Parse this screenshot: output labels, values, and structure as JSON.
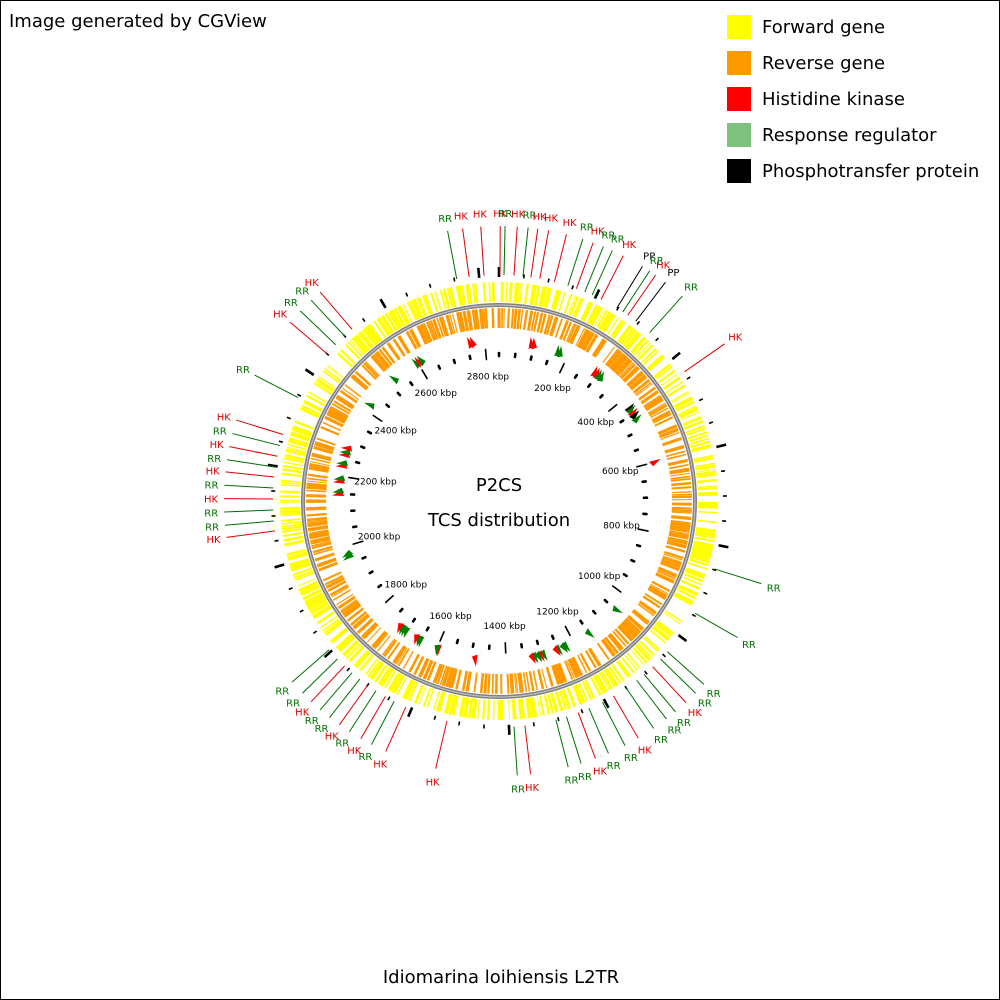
{
  "credit": "Image generated by CGView",
  "legend": [
    {
      "label": "Forward gene",
      "color": "#ffff00"
    },
    {
      "label": "Reverse gene",
      "color": "#ff9900"
    },
    {
      "label": "Histidine kinase",
      "color": "#ff0000"
    },
    {
      "label": "Response regulator",
      "color": "#7fc07f"
    },
    {
      "label": "Phosphotransfer protein",
      "color": "#000000"
    }
  ],
  "center_title": "P2CS",
  "center_subtitle": "TCS distribution",
  "bottom_title": "Idiomarina loihiensis L2TR",
  "map": {
    "genome_length_kbp": 2840,
    "backbone_color": "#808080",
    "feature_colors": {
      "HK": "#ff0000",
      "RR": "#008000",
      "PP": "#000000"
    },
    "ruler_labels": [
      {
        "kbp": 200,
        "text": "200 kbp"
      },
      {
        "kbp": 400,
        "text": "400 kbp"
      },
      {
        "kbp": 600,
        "text": "600 kbp"
      },
      {
        "kbp": 800,
        "text": "800 kbp"
      },
      {
        "kbp": 1000,
        "text": "1000 kbp"
      },
      {
        "kbp": 1200,
        "text": "1200 kbp"
      },
      {
        "kbp": 1400,
        "text": "1400 kbp"
      },
      {
        "kbp": 1600,
        "text": "1600 kbp"
      },
      {
        "kbp": 1800,
        "text": "1800 kbp"
      },
      {
        "kbp": 2000,
        "text": "2000 kbp"
      },
      {
        "kbp": 2200,
        "text": "2200 kbp"
      },
      {
        "kbp": 2400,
        "text": "2400 kbp"
      },
      {
        "kbp": 2600,
        "text": "2600 kbp"
      },
      {
        "kbp": 2800,
        "text": "2800 kbp"
      }
    ],
    "tcs_features": [
      {
        "type": "HK",
        "kbp": 92
      },
      {
        "type": "HK",
        "kbp": 100
      },
      {
        "type": "RR",
        "kbp": 170
      },
      {
        "type": "RR",
        "kbp": 178
      },
      {
        "type": "HK",
        "kbp": 290
      },
      {
        "type": "HK",
        "kbp": 298
      },
      {
        "type": "RR",
        "kbp": 305
      },
      {
        "type": "RR",
        "kbp": 313
      },
      {
        "type": "PP",
        "kbp": 432
      },
      {
        "type": "RR",
        "kbp": 438
      },
      {
        "type": "HK",
        "kbp": 448
      },
      {
        "type": "PP",
        "kbp": 456
      },
      {
        "type": "RR",
        "kbp": 468
      },
      {
        "type": "HK",
        "kbp": 600
      },
      {
        "type": "RR",
        "kbp": 1048
      },
      {
        "type": "RR",
        "kbp": 1150
      },
      {
        "type": "RR",
        "kbp": 1225
      },
      {
        "type": "RR",
        "kbp": 1232
      },
      {
        "type": "RR",
        "kbp": 1248
      },
      {
        "type": "HK",
        "kbp": 1254
      },
      {
        "type": "RR",
        "kbp": 1292
      },
      {
        "type": "HK",
        "kbp": 1300
      },
      {
        "type": "RR",
        "kbp": 1307
      },
      {
        "type": "RR",
        "kbp": 1318
      },
      {
        "type": "HK",
        "kbp": 1325
      },
      {
        "type": "HK",
        "kbp": 1488
      },
      {
        "type": "HK",
        "kbp": 1596
      },
      {
        "type": "RR",
        "kbp": 1600
      },
      {
        "type": "RR",
        "kbp": 1652
      },
      {
        "type": "RR",
        "kbp": 1658
      },
      {
        "type": "HK",
        "kbp": 1666
      },
      {
        "type": "RR",
        "kbp": 1700
      },
      {
        "type": "RR",
        "kbp": 1708
      },
      {
        "type": "RR",
        "kbp": 1715
      },
      {
        "type": "HK",
        "kbp": 1722
      },
      {
        "type": "RR",
        "kbp": 1970
      },
      {
        "type": "RR",
        "kbp": 1978
      },
      {
        "type": "HK",
        "kbp": 2150
      },
      {
        "type": "RR",
        "kbp": 2158
      },
      {
        "type": "HK",
        "kbp": 2186
      },
      {
        "type": "RR",
        "kbp": 2194
      },
      {
        "type": "HK",
        "kbp": 2230
      },
      {
        "type": "RR",
        "kbp": 2238
      },
      {
        "type": "HK",
        "kbp": 2262
      },
      {
        "type": "RR",
        "kbp": 2270
      },
      {
        "type": "HK",
        "kbp": 2282
      },
      {
        "type": "RR",
        "kbp": 2420
      },
      {
        "type": "RR",
        "kbp": 2520
      },
      {
        "type": "RR",
        "kbp": 2596
      },
      {
        "type": "HK",
        "kbp": 2604
      },
      {
        "type": "RR",
        "kbp": 2612
      },
      {
        "type": "HK",
        "kbp": 2758
      },
      {
        "type": "HK",
        "kbp": 2766
      }
    ],
    "callout_labels": [
      {
        "kbp": 2,
        "text": "HK",
        "type": "HK"
      },
      {
        "kbp": 10,
        "text": "RR",
        "type": "RR"
      },
      {
        "kbp": 30,
        "text": "HK",
        "type": "HK"
      },
      {
        "kbp": 48,
        "text": "RR",
        "type": "RR"
      },
      {
        "kbp": 64,
        "text": "HK",
        "type": "HK"
      },
      {
        "kbp": 82,
        "text": "HK",
        "type": "HK"
      },
      {
        "kbp": 112,
        "text": "HK",
        "type": "HK"
      },
      {
        "kbp": 140,
        "text": "RR",
        "type": "RR"
      },
      {
        "kbp": 158,
        "text": "HK",
        "type": "HK"
      },
      {
        "kbp": 176,
        "text": "RR",
        "type": "RR"
      },
      {
        "kbp": 192,
        "text": "RR",
        "type": "RR"
      },
      {
        "kbp": 212,
        "text": "HK",
        "type": "HK"
      },
      {
        "kbp": 248,
        "text": "PP",
        "type": "PP"
      },
      {
        "kbp": 262,
        "text": "RR",
        "type": "RR"
      },
      {
        "kbp": 274,
        "text": "HK",
        "type": "HK"
      },
      {
        "kbp": 294,
        "text": "PP",
        "type": "PP"
      },
      {
        "kbp": 330,
        "text": "RR",
        "type": "RR"
      },
      {
        "kbp": 435,
        "text": "HK",
        "type": "HK"
      },
      {
        "kbp": 848,
        "text": "RR",
        "type": "RR"
      },
      {
        "kbp": 945,
        "text": "RR",
        "type": "RR"
      },
      {
        "kbp": 1040,
        "text": "RR",
        "type": "RR"
      },
      {
        "kbp": 1060,
        "text": "RR",
        "type": "RR"
      },
      {
        "kbp": 1082,
        "text": "HK",
        "type": "HK"
      },
      {
        "kbp": 1105,
        "text": "RR",
        "type": "RR"
      },
      {
        "kbp": 1124,
        "text": "RR",
        "type": "RR"
      },
      {
        "kbp": 1150,
        "text": "RR",
        "type": "RR"
      },
      {
        "kbp": 1180,
        "text": "HK",
        "type": "HK"
      },
      {
        "kbp": 1205,
        "text": "RR",
        "type": "RR"
      },
      {
        "kbp": 1235,
        "text": "RR",
        "type": "RR"
      },
      {
        "kbp": 1258,
        "text": "HK",
        "type": "HK"
      },
      {
        "kbp": 1283,
        "text": "RR",
        "type": "RR"
      },
      {
        "kbp": 1305,
        "text": "RR",
        "type": "RR"
      },
      {
        "kbp": 1368,
        "text": "HK",
        "type": "HK"
      },
      {
        "kbp": 1390,
        "text": "RR",
        "type": "RR"
      },
      {
        "kbp": 1525,
        "text": "HK",
        "type": "HK"
      },
      {
        "kbp": 1612,
        "text": "HK",
        "type": "HK"
      },
      {
        "kbp": 1638,
        "text": "RR",
        "type": "RR"
      },
      {
        "kbp": 1658,
        "text": "HK",
        "type": "HK"
      },
      {
        "kbp": 1680,
        "text": "RR",
        "type": "RR"
      },
      {
        "kbp": 1700,
        "text": "HK",
        "type": "HK"
      },
      {
        "kbp": 1720,
        "text": "RR",
        "type": "RR"
      },
      {
        "kbp": 1740,
        "text": "RR",
        "type": "RR"
      },
      {
        "kbp": 1760,
        "text": "HK",
        "type": "HK"
      },
      {
        "kbp": 1780,
        "text": "RR",
        "type": "RR"
      },
      {
        "kbp": 1805,
        "text": "RR",
        "type": "RR"
      },
      {
        "kbp": 2070,
        "text": "HK",
        "type": "HK"
      },
      {
        "kbp": 2090,
        "text": "RR",
        "type": "RR"
      },
      {
        "kbp": 2112,
        "text": "RR",
        "type": "RR"
      },
      {
        "kbp": 2134,
        "text": "HK",
        "type": "HK"
      },
      {
        "kbp": 2156,
        "text": "RR",
        "type": "RR"
      },
      {
        "kbp": 2178,
        "text": "HK",
        "type": "HK"
      },
      {
        "kbp": 2198,
        "text": "RR",
        "type": "RR"
      },
      {
        "kbp": 2220,
        "text": "HK",
        "type": "HK"
      },
      {
        "kbp": 2242,
        "text": "RR",
        "type": "RR"
      },
      {
        "kbp": 2265,
        "text": "HK",
        "type": "HK"
      },
      {
        "kbp": 2345,
        "text": "RR",
        "type": "RR"
      },
      {
        "kbp": 2450,
        "text": "HK",
        "type": "HK"
      },
      {
        "kbp": 2475,
        "text": "RR",
        "type": "RR"
      },
      {
        "kbp": 2500,
        "text": "RR",
        "type": "RR"
      },
      {
        "kbp": 2520,
        "text": "HK",
        "type": "HK"
      },
      {
        "kbp": 2755,
        "text": "RR",
        "type": "RR"
      },
      {
        "kbp": 2780,
        "text": "HK",
        "type": "HK"
      },
      {
        "kbp": 2810,
        "text": "HK",
        "type": "HK"
      }
    ]
  }
}
